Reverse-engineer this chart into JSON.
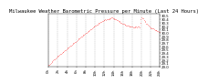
{
  "title": "Milwaukee Weather Barometric Pressure per Minute (Last 24 Hours)",
  "background_color": "#ffffff",
  "plot_bg_color": "#ffffff",
  "grid_color": "#999999",
  "line_color": "#ff0000",
  "title_fontsize": 4.0,
  "tick_fontsize": 2.8,
  "ylim": [
    29.0,
    30.55
  ],
  "yticks": [
    29.0,
    29.1,
    29.2,
    29.3,
    29.4,
    29.5,
    29.6,
    29.7,
    29.8,
    29.9,
    30.0,
    30.1,
    30.2,
    30.3,
    30.4,
    30.5
  ],
  "pressure_profile": [
    29.05,
    29.06,
    29.08,
    29.1,
    29.13,
    29.15,
    29.17,
    29.2,
    29.22,
    29.24,
    29.27,
    29.29,
    29.31,
    29.33,
    29.35,
    29.37,
    29.38,
    29.4,
    29.42,
    29.44,
    29.46,
    29.47,
    29.49,
    29.52,
    29.54,
    29.56,
    29.58,
    29.59,
    29.61,
    29.63,
    29.65,
    29.67,
    29.69,
    29.71,
    29.73,
    29.74,
    29.76,
    29.78,
    29.8,
    29.82,
    29.84,
    29.86,
    29.88,
    29.89,
    29.91,
    29.93,
    29.95,
    29.97,
    29.99,
    30.0,
    30.02,
    30.04,
    30.06,
    30.07,
    30.09,
    30.11,
    30.13,
    30.15,
    30.17,
    30.18,
    30.2,
    30.22,
    30.24,
    30.25,
    30.27,
    30.28,
    30.3,
    30.31,
    30.33,
    30.34,
    30.35,
    30.36,
    30.37,
    30.38,
    30.39,
    30.4,
    30.41,
    30.41,
    30.42,
    30.42,
    30.43,
    30.44,
    30.44,
    30.43,
    30.42,
    30.41,
    30.4,
    30.39,
    30.37,
    30.36,
    30.34,
    30.33,
    30.31,
    30.3,
    30.28,
    30.27,
    30.26,
    30.25,
    30.24,
    30.23,
    30.22,
    30.21,
    30.2,
    30.2,
    30.19,
    30.19,
    30.18,
    30.18,
    30.18,
    30.17,
    30.17,
    30.17,
    30.16,
    30.16,
    30.16,
    30.17,
    30.17,
    30.16,
    30.3,
    30.4,
    30.45,
    30.44,
    30.42,
    30.38,
    30.35,
    30.32,
    30.28,
    30.26,
    30.23,
    30.2,
    30.18,
    30.16,
    30.14,
    30.13,
    30.12,
    30.11,
    30.1,
    30.09,
    30.08,
    30.07,
    30.06,
    30.05,
    30.04,
    30.03
  ],
  "xtick_positions": [
    0,
    12,
    24,
    36,
    48,
    60,
    72,
    84,
    96,
    108,
    120,
    132,
    143
  ],
  "xtick_labels": [
    "0h",
    "2h",
    "4h",
    "6h",
    "8h",
    "10h",
    "12h",
    "14h",
    "16h",
    "18h",
    "20h",
    "22h",
    "24h"
  ]
}
